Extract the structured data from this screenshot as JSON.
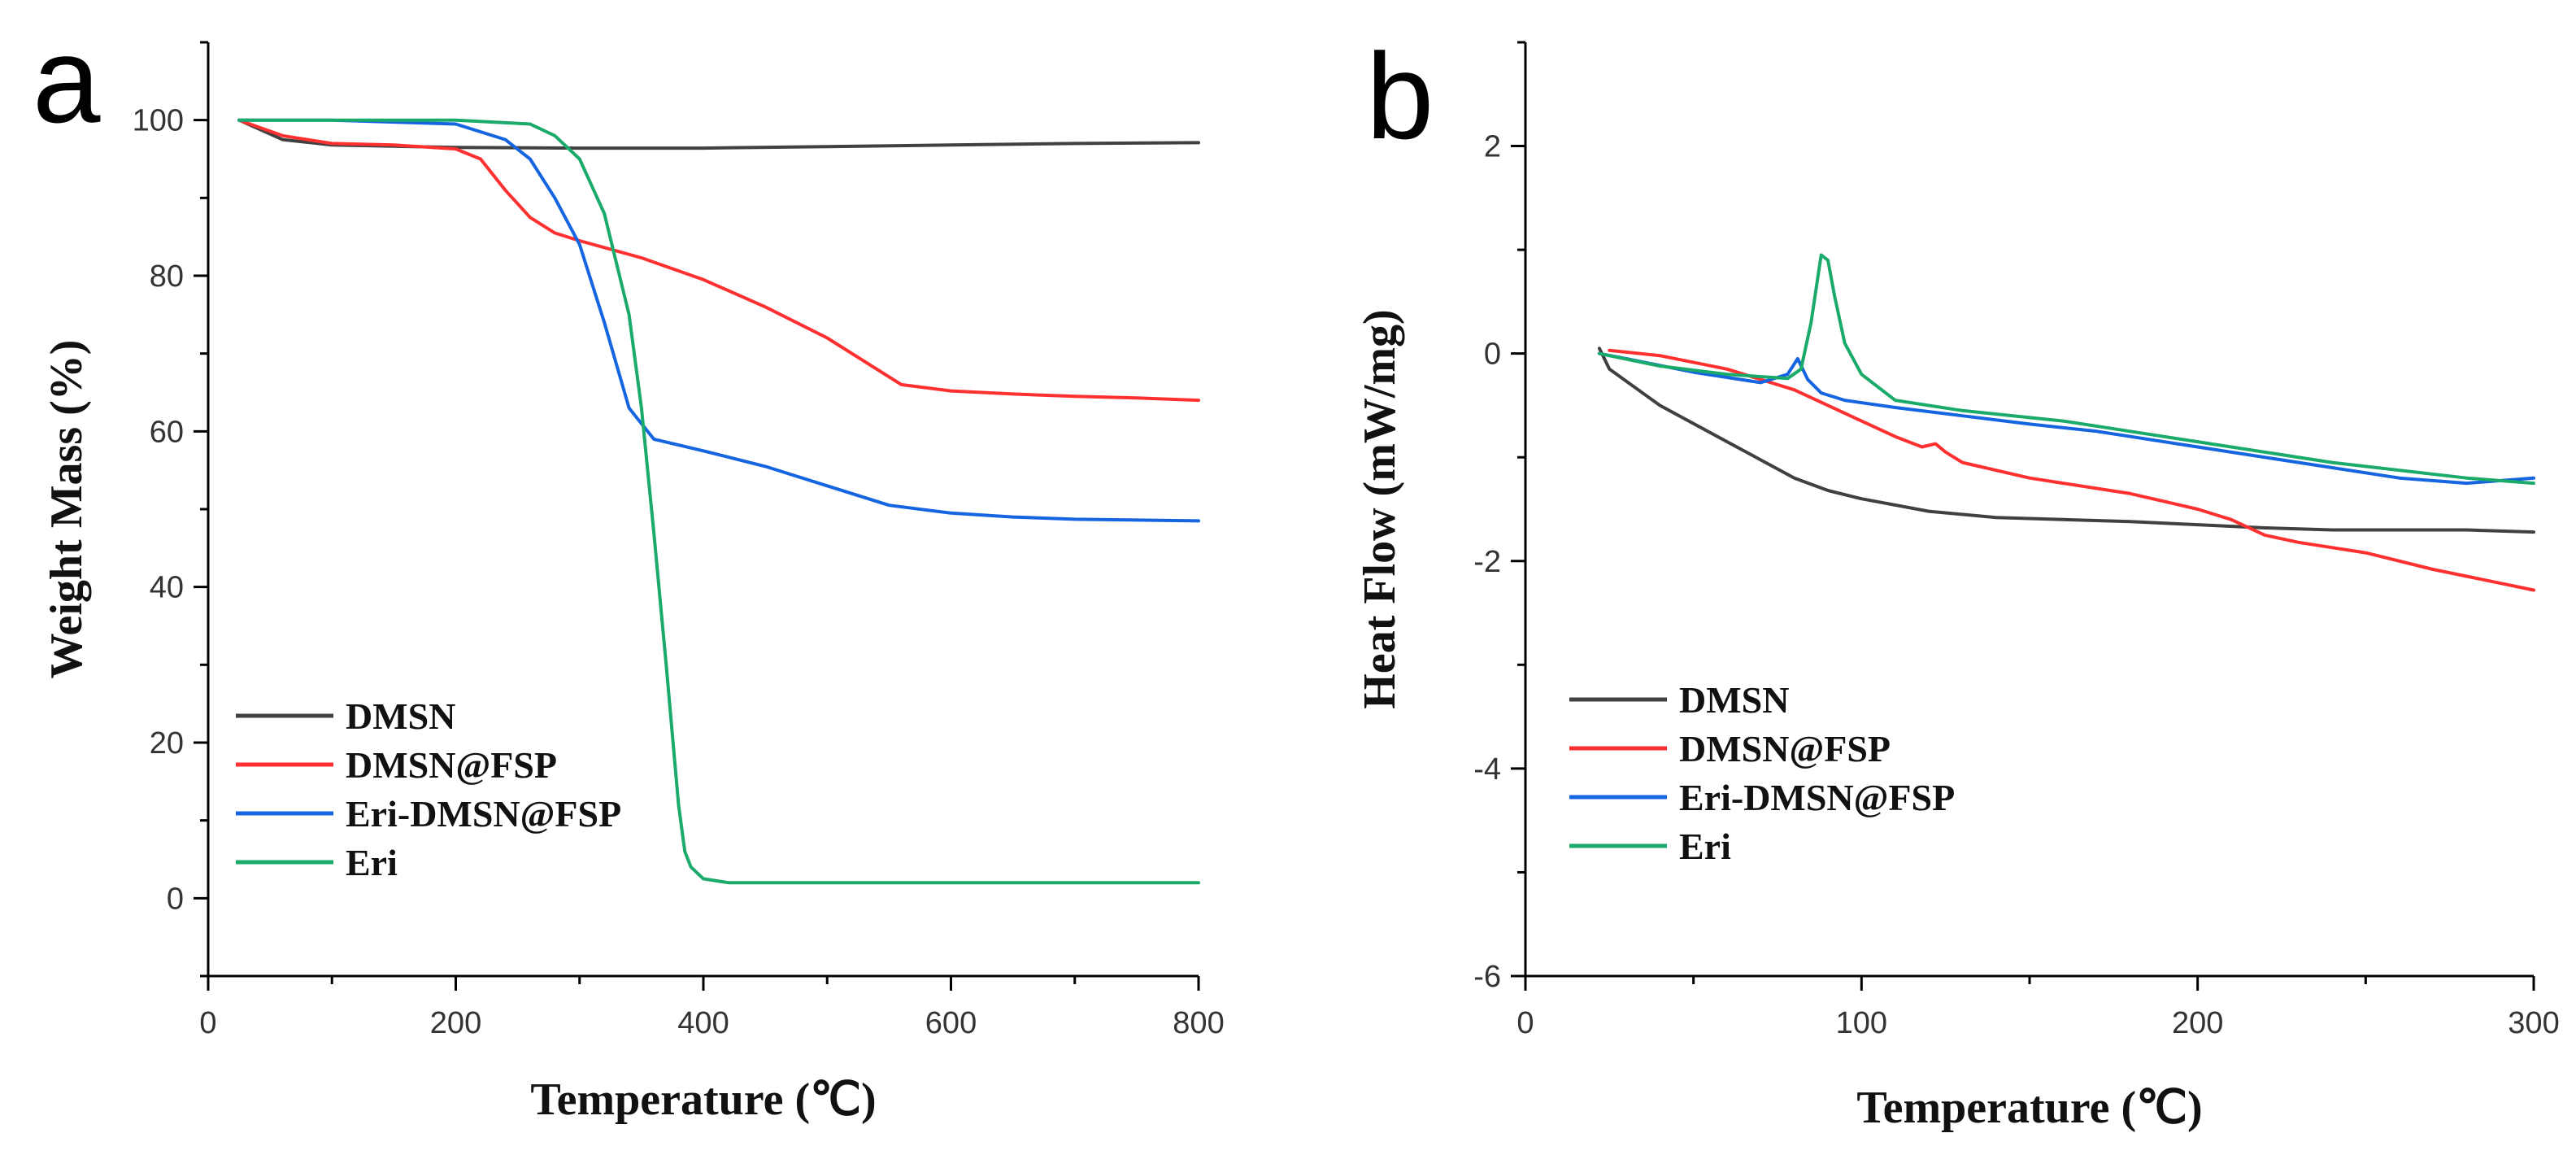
{
  "chart_data": [
    {
      "type": "line",
      "panel_label": "a",
      "xlabel": "Temperature (℃)",
      "ylabel": "Weight Mass (%)",
      "xlim": [
        0,
        800
      ],
      "ylim": [
        -10,
        110
      ],
      "xticks": [
        0,
        200,
        400,
        600,
        800
      ],
      "yticks": [
        0,
        20,
        40,
        60,
        80,
        100
      ],
      "legend_position": "bottom-left",
      "series": [
        {
          "name": "DMSN",
          "color": "#404040",
          "x": [
            25,
            60,
            100,
            200,
            300,
            400,
            500,
            600,
            700,
            800
          ],
          "y": [
            100,
            97.5,
            96.8,
            96.5,
            96.4,
            96.4,
            96.6,
            96.8,
            97.0,
            97.1
          ]
        },
        {
          "name": "DMSN@FSP",
          "color": "#ff3030",
          "x": [
            25,
            60,
            100,
            150,
            200,
            220,
            240,
            260,
            280,
            300,
            350,
            400,
            450,
            500,
            540,
            560,
            600,
            650,
            700,
            750,
            800
          ],
          "y": [
            100,
            98,
            97,
            96.8,
            96.3,
            95,
            91,
            87.5,
            85.5,
            84.5,
            82.3,
            79.5,
            76,
            72,
            68,
            66,
            65.2,
            64.8,
            64.5,
            64.3,
            64
          ]
        },
        {
          "name": "Eri-DMSN@FSP",
          "color": "#1565e0",
          "x": [
            25,
            100,
            200,
            240,
            260,
            280,
            300,
            320,
            340,
            360,
            400,
            450,
            500,
            550,
            600,
            650,
            700,
            800
          ],
          "y": [
            100,
            100,
            99.5,
            97.5,
            95,
            90,
            84,
            74,
            63,
            59,
            57.5,
            55.5,
            53,
            50.5,
            49.5,
            49,
            48.7,
            48.5
          ]
        },
        {
          "name": "Eri",
          "color": "#1aaa6a",
          "x": [
            25,
            100,
            200,
            260,
            280,
            300,
            320,
            340,
            350,
            360,
            370,
            380,
            385,
            390,
            400,
            420,
            500,
            600,
            700,
            800
          ],
          "y": [
            100,
            100,
            100,
            99.5,
            98,
            95,
            88,
            75,
            63,
            47,
            30,
            12,
            6,
            4,
            2.5,
            2,
            2,
            2,
            2,
            2
          ]
        }
      ]
    },
    {
      "type": "line",
      "panel_label": "b",
      "xlabel": "Temperature (℃)",
      "ylabel": "Heat Flow (mW/mg)",
      "xlim": [
        0,
        300
      ],
      "ylim": [
        -6,
        3
      ],
      "xticks": [
        0,
        100,
        200,
        300
      ],
      "yticks": [
        -6,
        -4,
        -2,
        0,
        2
      ],
      "legend_position": "bottom-left",
      "series": [
        {
          "name": "DMSN",
          "color": "#404040",
          "x": [
            22,
            25,
            40,
            60,
            80,
            90,
            100,
            120,
            140,
            160,
            180,
            200,
            220,
            240,
            260,
            280,
            300
          ],
          "y": [
            0.05,
            -0.15,
            -0.5,
            -0.85,
            -1.2,
            -1.32,
            -1.4,
            -1.52,
            -1.58,
            -1.6,
            -1.62,
            -1.65,
            -1.68,
            -1.7,
            -1.7,
            -1.7,
            -1.72
          ]
        },
        {
          "name": "DMSN@FSP",
          "color": "#ff3030",
          "x": [
            25,
            40,
            60,
            80,
            100,
            110,
            118,
            122,
            125,
            130,
            150,
            180,
            200,
            210,
            220,
            230,
            250,
            270,
            300
          ],
          "y": [
            0.03,
            -0.02,
            -0.15,
            -0.35,
            -0.65,
            -0.8,
            -0.9,
            -0.87,
            -0.95,
            -1.05,
            -1.2,
            -1.35,
            -1.5,
            -1.6,
            -1.75,
            -1.82,
            -1.92,
            -2.08,
            -2.28
          ]
        },
        {
          "name": "Eri-DMSN@FSP",
          "color": "#1565e0",
          "x": [
            22,
            30,
            50,
            70,
            78,
            81,
            84,
            88,
            95,
            110,
            130,
            150,
            170,
            200,
            230,
            260,
            280,
            300
          ],
          "y": [
            0.0,
            -0.05,
            -0.18,
            -0.28,
            -0.2,
            -0.05,
            -0.25,
            -0.38,
            -0.45,
            -0.52,
            -0.6,
            -0.68,
            -0.75,
            -0.9,
            -1.05,
            -1.2,
            -1.25,
            -1.2
          ]
        },
        {
          "name": "Eri",
          "color": "#1aaa6a",
          "x": [
            22,
            40,
            60,
            78,
            82,
            85,
            88,
            90,
            92,
            95,
            100,
            110,
            130,
            160,
            200,
            240,
            280,
            300
          ],
          "y": [
            0.0,
            -0.12,
            -0.2,
            -0.24,
            -0.15,
            0.3,
            0.95,
            0.9,
            0.55,
            0.1,
            -0.2,
            -0.45,
            -0.55,
            -0.65,
            -0.85,
            -1.05,
            -1.2,
            -1.25
          ]
        }
      ]
    }
  ]
}
